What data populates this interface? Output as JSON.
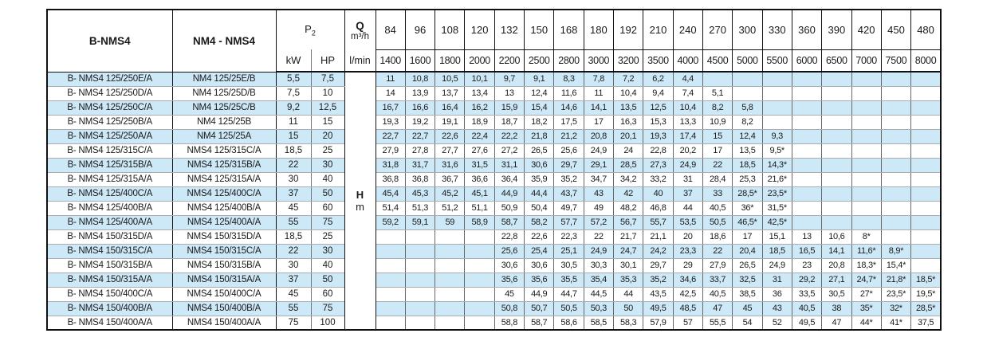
{
  "colors": {
    "stripe_blue": "#cde8f7",
    "border_dark": "#111111",
    "border_light": "#a9adb0"
  },
  "table": {
    "col_model_b_header": "B-NMS4",
    "col_model_nm_header": "NM4 - NMS4",
    "p2_label": "P",
    "p2_sub": "2",
    "q_label": "Q",
    "q_unit": "m³/h",
    "kw_header": "kW",
    "hp_header": "HP",
    "lmin_header": "l/min",
    "h_label": "H",
    "h_unit": "m",
    "flow_m3h": [
      "84",
      "96",
      "108",
      "120",
      "132",
      "150",
      "168",
      "180",
      "192",
      "210",
      "240",
      "270",
      "300",
      "330",
      "360",
      "390",
      "420",
      "450",
      "480"
    ],
    "flow_lmin": [
      "1400",
      "1600",
      "1800",
      "2000",
      "2200",
      "2500",
      "2800",
      "3000",
      "3200",
      "3500",
      "4000",
      "4500",
      "5000",
      "5500",
      "6000",
      "6500",
      "7000",
      "7500",
      "8000"
    ],
    "rows": [
      {
        "b": "B- NMS4 125/250E/A",
        "nm": "NM4 125/25E/B",
        "kw": "5,5",
        "hp": "7,5",
        "values": [
          "11",
          "10,8",
          "10,5",
          "10,1",
          "9,7",
          "9,1",
          "8,3",
          "7,8",
          "7,2",
          "6,2",
          "4,4",
          "",
          "",
          "",
          "",
          "",
          "",
          "",
          ""
        ]
      },
      {
        "b": "B- NMS4 125/250D/A",
        "nm": "NM4 125/25D/B",
        "kw": "7,5",
        "hp": "10",
        "values": [
          "14",
          "13,9",
          "13,7",
          "13,4",
          "13",
          "12,4",
          "11,6",
          "11",
          "10,4",
          "9,4",
          "7,4",
          "5,1",
          "",
          "",
          "",
          "",
          "",
          "",
          ""
        ]
      },
      {
        "b": "B- NMS4 125/250C/A",
        "nm": "NM4 125/25C/B",
        "kw": "9,2",
        "hp": "12,5",
        "values": [
          "16,7",
          "16,6",
          "16,4",
          "16,2",
          "15,9",
          "15,4",
          "14,6",
          "14,1",
          "13,5",
          "12,5",
          "10,4",
          "8,2",
          "5,8",
          "",
          "",
          "",
          "",
          "",
          ""
        ]
      },
      {
        "b": "B- NMS4 125/250B/A",
        "nm": "NM4 125/25B",
        "kw": "11",
        "hp": "15",
        "values": [
          "19,3",
          "19,2",
          "19,1",
          "18,9",
          "18,7",
          "18,2",
          "17,5",
          "17",
          "16,3",
          "15,3",
          "13,3",
          "10,9",
          "8,2",
          "",
          "",
          "",
          "",
          "",
          ""
        ]
      },
      {
        "b": "B- NMS4 125/250A/A",
        "nm": "NM4 125/25A",
        "kw": "15",
        "hp": "20",
        "values": [
          "22,7",
          "22,7",
          "22,6",
          "22,4",
          "22,2",
          "21,8",
          "21,2",
          "20,8",
          "20,1",
          "19,3",
          "17,4",
          "15",
          "12,4",
          "9,3",
          "",
          "",
          "",
          "",
          ""
        ]
      },
      {
        "b": "B- NMS4 125/315C/A",
        "nm": "NMS4 125/315C/A",
        "kw": "18,5",
        "hp": "25",
        "values": [
          "27,9",
          "27,8",
          "27,7",
          "27,6",
          "27,2",
          "26,5",
          "25,6",
          "24,9",
          "24",
          "22,8",
          "20,2",
          "17",
          "13,5",
          "9,5*",
          "",
          "",
          "",
          "",
          ""
        ]
      },
      {
        "b": "B- NMS4 125/315B/A",
        "nm": "NMS4 125/315B/A",
        "kw": "22",
        "hp": "30",
        "values": [
          "31,8",
          "31,7",
          "31,6",
          "31,5",
          "31,1",
          "30,6",
          "29,7",
          "29,1",
          "28,5",
          "27,3",
          "24,9",
          "22",
          "18,5",
          "14,3*",
          "",
          "",
          "",
          "",
          ""
        ]
      },
      {
        "b": "B- NMS4 125/315A/A",
        "nm": "NMS4 125/315A/A",
        "kw": "30",
        "hp": "40",
        "values": [
          "36,8",
          "36,8",
          "36,7",
          "36,6",
          "36,4",
          "35,9",
          "35,2",
          "34,7",
          "34,2",
          "33,2",
          "31",
          "28,4",
          "25,3",
          "21,6*",
          "",
          "",
          "",
          "",
          ""
        ]
      },
      {
        "b": "B- NMS4 125/400C/A",
        "nm": "NMS4 125/400C/A",
        "kw": "37",
        "hp": "50",
        "values": [
          "45,4",
          "45,3",
          "45,2",
          "45,1",
          "44,9",
          "44,4",
          "43,7",
          "43",
          "42",
          "40",
          "37",
          "33",
          "28,5*",
          "23,5*",
          "",
          "",
          "",
          "",
          ""
        ]
      },
      {
        "b": "B- NMS4 125/400B/A",
        "nm": "NMS4 125/400B/A",
        "kw": "45",
        "hp": "60",
        "values": [
          "51,4",
          "51,3",
          "51,2",
          "51,1",
          "50,9",
          "50,4",
          "49,7",
          "49",
          "48,2",
          "46,8",
          "44",
          "40,5",
          "36*",
          "31,5*",
          "",
          "",
          "",
          "",
          ""
        ]
      },
      {
        "b": "B- NMS4 125/400A/A",
        "nm": "NMS4 125/400A/A",
        "kw": "55",
        "hp": "75",
        "values": [
          "59,2",
          "59,1",
          "59",
          "58,9",
          "58,7",
          "58,2",
          "57,7",
          "57,2",
          "56,7",
          "55,7",
          "53,5",
          "50,5",
          "46,5*",
          "42,5*",
          "",
          "",
          "",
          "",
          ""
        ]
      },
      {
        "b": "B- NMS4 150/315D/A",
        "nm": "NMS4 150/315D/A",
        "kw": "18,5",
        "hp": "25",
        "values": [
          "",
          "",
          "",
          "",
          "22,8",
          "22,6",
          "22,3",
          "22",
          "21,7",
          "21,1",
          "20",
          "18,6",
          "17",
          "15,1",
          "13",
          "10,6",
          "8*",
          "",
          ""
        ]
      },
      {
        "b": "B- NMS4 150/315C/A",
        "nm": "NMS4 150/315C/A",
        "kw": "22",
        "hp": "30",
        "values": [
          "",
          "",
          "",
          "",
          "25,6",
          "25,4",
          "25,1",
          "24,9",
          "24,7",
          "24,2",
          "23,3",
          "22",
          "20,4",
          "18,5",
          "16,5",
          "14,1",
          "11,6*",
          "8,9*",
          ""
        ]
      },
      {
        "b": "B- NMS4 150/315B/A",
        "nm": "NMS4 150/315B/A",
        "kw": "30",
        "hp": "40",
        "values": [
          "",
          "",
          "",
          "",
          "30,6",
          "30,6",
          "30,5",
          "30,3",
          "30,1",
          "29,7",
          "29",
          "27,9",
          "26,5",
          "24,9",
          "23",
          "20,8",
          "18,3*",
          "15,4*",
          ""
        ]
      },
      {
        "b": "B- NMS4 150/315A/A",
        "nm": "NMS4 150/315A/A",
        "kw": "37",
        "hp": "50",
        "values": [
          "",
          "",
          "",
          "",
          "35,6",
          "35,6",
          "35,5",
          "35,4",
          "35,3",
          "35,2",
          "34,6",
          "33,7",
          "32,5",
          "31",
          "29,2",
          "27,1",
          "24,7*",
          "21,8*",
          "18,5*"
        ]
      },
      {
        "b": "B- NMS4 150/400C/A",
        "nm": "NMS4 150/400C/A",
        "kw": "45",
        "hp": "60",
        "values": [
          "",
          "",
          "",
          "",
          "45",
          "44,9",
          "44,7",
          "44,5",
          "44",
          "43,5",
          "42,5",
          "40,5",
          "38,5",
          "36",
          "33,5",
          "30,5",
          "27*",
          "23,5*",
          "19,5*"
        ]
      },
      {
        "b": "B- NMS4 150/400B/A",
        "nm": "NMS4 150/400B/A",
        "kw": "55",
        "hp": "75",
        "values": [
          "",
          "",
          "",
          "",
          "50,8",
          "50,7",
          "50,5",
          "50,3",
          "50",
          "49,5",
          "48,5",
          "47",
          "45",
          "43",
          "40,5",
          "38",
          "35*",
          "32*",
          "28,5*"
        ]
      },
      {
        "b": "B- NMS4 150/400A/A",
        "nm": "NMS4 150/400A/A",
        "kw": "75",
        "hp": "100",
        "values": [
          "",
          "",
          "",
          "",
          "58,8",
          "58,7",
          "58,6",
          "58,5",
          "58,3",
          "57,9",
          "57",
          "55,5",
          "54",
          "52",
          "49,5",
          "47",
          "44*",
          "41*",
          "37,5"
        ]
      }
    ]
  }
}
